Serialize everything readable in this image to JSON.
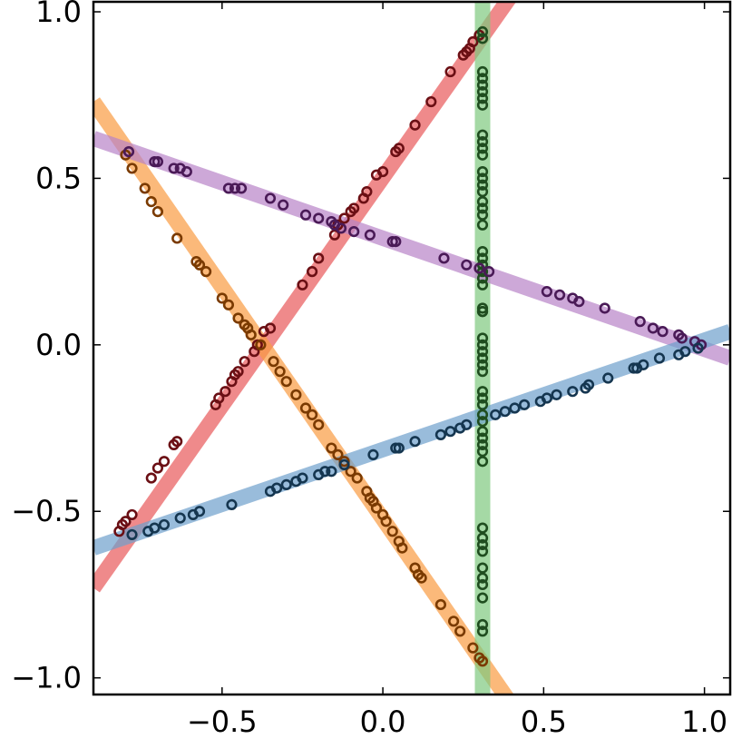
{
  "chart_data": {
    "type": "scatter",
    "title": "",
    "xlabel": "",
    "ylabel": "",
    "xlim": [
      -0.9,
      1.08
    ],
    "ylim": [
      -1.05,
      1.03
    ],
    "grid": false,
    "legend": "none",
    "x_ticks": [
      {
        "value": -0.5,
        "label": "−0.5"
      },
      {
        "value": 0.0,
        "label": "0.0"
      },
      {
        "value": 0.5,
        "label": "0.5"
      },
      {
        "value": 1.0,
        "label": "1.0"
      }
    ],
    "y_ticks": [
      {
        "value": -1.0,
        "label": "−1.0"
      },
      {
        "value": -0.5,
        "label": "−0.5"
      },
      {
        "value": 0.0,
        "label": "0.0"
      },
      {
        "value": 0.5,
        "label": "0.5"
      },
      {
        "value": 1.0,
        "label": "1.0"
      }
    ],
    "series": [
      {
        "line_color": "#e8595a",
        "point_color": "#6b0f14",
        "fit_line": {
          "x": [
            -0.9,
            0.4
          ],
          "y": [
            -0.73,
            1.05
          ]
        },
        "points": [
          [
            -0.82,
            -0.56
          ],
          [
            -0.81,
            -0.54
          ],
          [
            -0.8,
            -0.53
          ],
          [
            -0.78,
            -0.51
          ],
          [
            -0.72,
            -0.4
          ],
          [
            -0.7,
            -0.37
          ],
          [
            -0.68,
            -0.35
          ],
          [
            -0.65,
            -0.3
          ],
          [
            -0.64,
            -0.29
          ],
          [
            -0.52,
            -0.18
          ],
          [
            -0.51,
            -0.16
          ],
          [
            -0.49,
            -0.14
          ],
          [
            -0.47,
            -0.11
          ],
          [
            -0.46,
            -0.09
          ],
          [
            -0.45,
            -0.08
          ],
          [
            -0.43,
            -0.05
          ],
          [
            -0.4,
            -0.02
          ],
          [
            -0.39,
            0.0
          ],
          [
            -0.37,
            0.04
          ],
          [
            -0.35,
            0.05
          ],
          [
            -0.25,
            0.18
          ],
          [
            -0.22,
            0.22
          ],
          [
            -0.2,
            0.26
          ],
          [
            -0.15,
            0.33
          ],
          [
            -0.14,
            0.36
          ],
          [
            -0.12,
            0.38
          ],
          [
            -0.1,
            0.4
          ],
          [
            -0.09,
            0.41
          ],
          [
            -0.06,
            0.44
          ],
          [
            -0.05,
            0.46
          ],
          [
            -0.02,
            0.51
          ],
          [
            0.0,
            0.52
          ],
          [
            0.04,
            0.58
          ],
          [
            0.05,
            0.59
          ],
          [
            0.1,
            0.66
          ],
          [
            0.15,
            0.73
          ],
          [
            0.21,
            0.82
          ],
          [
            0.25,
            0.87
          ],
          [
            0.26,
            0.88
          ],
          [
            0.27,
            0.89
          ],
          [
            0.28,
            0.91
          ],
          [
            0.3,
            0.93
          ]
        ]
      },
      {
        "line_color": "#f99b41",
        "point_color": "#7a3a00",
        "fit_line": {
          "x": [
            -0.9,
            0.4
          ],
          "y": [
            0.73,
            -1.08
          ]
        },
        "points": [
          [
            -0.8,
            0.57
          ],
          [
            -0.78,
            0.53
          ],
          [
            -0.74,
            0.47
          ],
          [
            -0.72,
            0.43
          ],
          [
            -0.7,
            0.4
          ],
          [
            -0.64,
            0.32
          ],
          [
            -0.58,
            0.25
          ],
          [
            -0.57,
            0.24
          ],
          [
            -0.55,
            0.22
          ],
          [
            -0.5,
            0.14
          ],
          [
            -0.48,
            0.12
          ],
          [
            -0.45,
            0.08
          ],
          [
            -0.43,
            0.06
          ],
          [
            -0.42,
            0.05
          ],
          [
            -0.41,
            0.03
          ],
          [
            -0.38,
            0.0
          ],
          [
            -0.34,
            -0.05
          ],
          [
            -0.32,
            -0.08
          ],
          [
            -0.3,
            -0.11
          ],
          [
            -0.27,
            -0.15
          ],
          [
            -0.24,
            -0.19
          ],
          [
            -0.22,
            -0.21
          ],
          [
            -0.2,
            -0.24
          ],
          [
            -0.16,
            -0.31
          ],
          [
            -0.14,
            -0.33
          ],
          [
            -0.12,
            -0.35
          ],
          [
            -0.1,
            -0.38
          ],
          [
            -0.08,
            -0.4
          ],
          [
            -0.05,
            -0.44
          ],
          [
            -0.04,
            -0.46
          ],
          [
            -0.03,
            -0.47
          ],
          [
            -0.02,
            -0.49
          ],
          [
            0.0,
            -0.51
          ],
          [
            0.01,
            -0.53
          ],
          [
            0.03,
            -0.56
          ],
          [
            0.05,
            -0.59
          ],
          [
            0.06,
            -0.61
          ],
          [
            0.1,
            -0.67
          ],
          [
            0.11,
            -0.69
          ],
          [
            0.12,
            -0.7
          ],
          [
            0.18,
            -0.78
          ],
          [
            0.22,
            -0.83
          ],
          [
            0.24,
            -0.86
          ],
          [
            0.28,
            -0.91
          ],
          [
            0.3,
            -0.94
          ],
          [
            0.31,
            -0.95
          ]
        ]
      },
      {
        "line_color": "#7fc97f",
        "point_color": "#1f4d1f",
        "fit_line": {
          "x": [
            0.31,
            0.31
          ],
          "y": [
            -1.1,
            1.1
          ]
        },
        "points": [
          [
            0.31,
            0.94
          ],
          [
            0.31,
            0.92
          ],
          [
            0.31,
            0.82
          ],
          [
            0.31,
            0.8
          ],
          [
            0.31,
            0.78
          ],
          [
            0.31,
            0.76
          ],
          [
            0.31,
            0.74
          ],
          [
            0.31,
            0.72
          ],
          [
            0.31,
            0.63
          ],
          [
            0.31,
            0.61
          ],
          [
            0.31,
            0.59
          ],
          [
            0.31,
            0.57
          ],
          [
            0.31,
            0.52
          ],
          [
            0.31,
            0.5
          ],
          [
            0.31,
            0.48
          ],
          [
            0.31,
            0.46
          ],
          [
            0.31,
            0.43
          ],
          [
            0.31,
            0.41
          ],
          [
            0.31,
            0.39
          ],
          [
            0.31,
            0.36
          ],
          [
            0.31,
            0.28
          ],
          [
            0.31,
            0.26
          ],
          [
            0.31,
            0.24
          ],
          [
            0.31,
            0.22
          ],
          [
            0.31,
            0.2
          ],
          [
            0.31,
            0.18
          ],
          [
            0.31,
            0.11
          ],
          [
            0.31,
            0.1
          ],
          [
            0.31,
            0.1
          ],
          [
            0.31,
            0.02
          ],
          [
            0.31,
            0.0
          ],
          [
            0.31,
            -0.02
          ],
          [
            0.31,
            -0.04
          ],
          [
            0.31,
            -0.06
          ],
          [
            0.31,
            -0.08
          ],
          [
            0.31,
            -0.14
          ],
          [
            0.31,
            -0.16
          ],
          [
            0.31,
            -0.18
          ],
          [
            0.31,
            -0.21
          ],
          [
            0.31,
            -0.23
          ],
          [
            0.31,
            -0.26
          ],
          [
            0.31,
            -0.28
          ],
          [
            0.31,
            -0.3
          ],
          [
            0.31,
            -0.32
          ],
          [
            0.31,
            -0.35
          ],
          [
            0.31,
            -0.55
          ],
          [
            0.31,
            -0.58
          ],
          [
            0.31,
            -0.6
          ],
          [
            0.31,
            -0.62
          ],
          [
            0.31,
            -0.67
          ],
          [
            0.31,
            -0.7
          ],
          [
            0.31,
            -0.72
          ],
          [
            0.31,
            -0.76
          ],
          [
            0.31,
            -0.84
          ],
          [
            0.31,
            -0.86
          ]
        ]
      },
      {
        "line_color": "#b883c7",
        "point_color": "#4a1a57",
        "fit_line": {
          "x": [
            -0.9,
            1.08
          ],
          "y": [
            0.62,
            -0.04
          ]
        },
        "points": [
          [
            -0.79,
            0.58
          ],
          [
            -0.71,
            0.55
          ],
          [
            -0.7,
            0.55
          ],
          [
            -0.65,
            0.53
          ],
          [
            -0.63,
            0.53
          ],
          [
            -0.61,
            0.52
          ],
          [
            -0.48,
            0.47
          ],
          [
            -0.46,
            0.47
          ],
          [
            -0.44,
            0.47
          ],
          [
            -0.35,
            0.44
          ],
          [
            -0.31,
            0.42
          ],
          [
            -0.24,
            0.39
          ],
          [
            -0.2,
            0.38
          ],
          [
            -0.16,
            0.37
          ],
          [
            -0.15,
            0.36
          ],
          [
            -0.13,
            0.35
          ],
          [
            -0.09,
            0.34
          ],
          [
            -0.04,
            0.33
          ],
          [
            0.03,
            0.31
          ],
          [
            0.04,
            0.31
          ],
          [
            0.19,
            0.26
          ],
          [
            0.26,
            0.24
          ],
          [
            0.3,
            0.23
          ],
          [
            0.33,
            0.22
          ],
          [
            0.51,
            0.16
          ],
          [
            0.55,
            0.15
          ],
          [
            0.59,
            0.14
          ],
          [
            0.61,
            0.13
          ],
          [
            0.69,
            0.11
          ],
          [
            0.8,
            0.07
          ],
          [
            0.84,
            0.05
          ],
          [
            0.87,
            0.04
          ],
          [
            0.92,
            0.03
          ],
          [
            0.93,
            0.02
          ],
          [
            0.97,
            0.01
          ],
          [
            0.99,
            0.0
          ]
        ]
      },
      {
        "line_color": "#6da0cc",
        "point_color": "#153650",
        "fit_line": {
          "x": [
            -0.9,
            1.08
          ],
          "y": [
            -0.61,
            0.04
          ]
        },
        "points": [
          [
            -0.78,
            -0.57
          ],
          [
            -0.73,
            -0.56
          ],
          [
            -0.71,
            -0.55
          ],
          [
            -0.68,
            -0.54
          ],
          [
            -0.63,
            -0.52
          ],
          [
            -0.59,
            -0.51
          ],
          [
            -0.57,
            -0.5
          ],
          [
            -0.47,
            -0.48
          ],
          [
            -0.35,
            -0.44
          ],
          [
            -0.33,
            -0.43
          ],
          [
            -0.3,
            -0.42
          ],
          [
            -0.27,
            -0.41
          ],
          [
            -0.25,
            -0.4
          ],
          [
            -0.2,
            -0.39
          ],
          [
            -0.18,
            -0.38
          ],
          [
            -0.16,
            -0.38
          ],
          [
            -0.12,
            -0.36
          ],
          [
            -0.03,
            -0.33
          ],
          [
            0.04,
            -0.31
          ],
          [
            0.05,
            -0.31
          ],
          [
            0.1,
            -0.29
          ],
          [
            0.18,
            -0.27
          ],
          [
            0.21,
            -0.26
          ],
          [
            0.24,
            -0.25
          ],
          [
            0.26,
            -0.24
          ],
          [
            0.35,
            -0.21
          ],
          [
            0.38,
            -0.2
          ],
          [
            0.41,
            -0.19
          ],
          [
            0.44,
            -0.18
          ],
          [
            0.49,
            -0.17
          ],
          [
            0.51,
            -0.16
          ],
          [
            0.54,
            -0.15
          ],
          [
            0.59,
            -0.14
          ],
          [
            0.63,
            -0.13
          ],
          [
            0.64,
            -0.12
          ],
          [
            0.7,
            -0.1
          ],
          [
            0.78,
            -0.07
          ],
          [
            0.79,
            -0.07
          ],
          [
            0.81,
            -0.06
          ],
          [
            0.86,
            -0.04
          ],
          [
            0.92,
            -0.03
          ],
          [
            0.94,
            -0.02
          ],
          [
            0.98,
            -0.01
          ]
        ]
      }
    ]
  }
}
